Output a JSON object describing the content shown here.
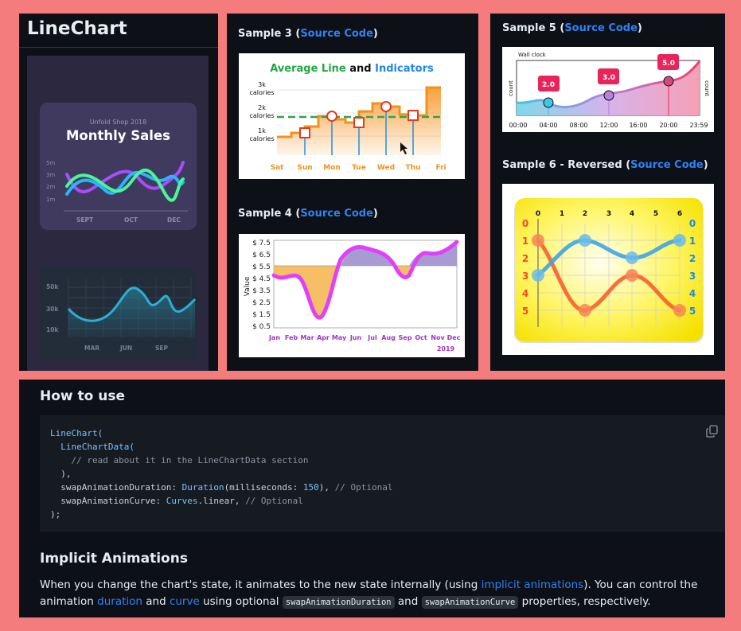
{
  "page": {
    "title": "LineChart"
  },
  "sample1": {
    "shop": "Unfold Shop 2018",
    "title": "Monthly Sales",
    "y_ticks": [
      "5m",
      "3m",
      "2m",
      "1m"
    ],
    "x_ticks": [
      "SEPT",
      "OCT",
      "DEC"
    ]
  },
  "sample2": {
    "y_ticks": [
      "50k",
      "30k",
      "10k"
    ],
    "x_ticks": [
      "MAR",
      "JUN",
      "SEP"
    ]
  },
  "sample3": {
    "heading": "Sample 3 (",
    "link": "Source Code",
    "close": ")",
    "title_a": "Average Line",
    "title_and": " and ",
    "title_b": "Indicators",
    "y_labels": [
      "3k",
      "calories",
      "2k",
      "calories",
      "1k",
      "calories"
    ],
    "x_labels": [
      "Sat",
      "Sun",
      "Mon",
      "Tue",
      "Wed",
      "Thu",
      "Fri"
    ]
  },
  "sample4": {
    "heading": "Sample 4 (",
    "link": "Source Code",
    "close": ")",
    "y_axis_label": "Value",
    "y_ticks": [
      "$ 7.5",
      "$ 6.5",
      "$ 5.5",
      "$ 4.5",
      "$ 3.5",
      "$ 2.5",
      "$ 1.5",
      "$ 0.5"
    ],
    "x_ticks": [
      "Jan",
      "Feb",
      "Mar",
      "Apr",
      "May",
      "Jun",
      "Jul",
      "Aug",
      "Sep",
      "Oct",
      "Nov",
      "Dec"
    ],
    "year": "2019"
  },
  "sample5": {
    "heading": "Sample 5 (",
    "link": "Source Code",
    "close": ")",
    "top_label": "Wall clock",
    "left_label": "count",
    "right_label": "count",
    "badges": [
      "2.0",
      "3.0",
      "5.0"
    ],
    "x_ticks": [
      "00:00",
      "04:00",
      "08:00",
      "12:00",
      "16:00",
      "20:00",
      "23:59"
    ]
  },
  "sample6": {
    "heading": "Sample 6 - Reversed (",
    "link": "Source Code",
    "close": ")",
    "top_ticks": [
      "0",
      "1",
      "2",
      "3",
      "4",
      "5",
      "6"
    ],
    "left_ticks": [
      "0",
      "1",
      "2",
      "3",
      "4",
      "5"
    ],
    "right_ticks": [
      "0",
      "1",
      "2",
      "3",
      "4",
      "5"
    ]
  },
  "how_to_use": {
    "heading": "How to use",
    "code": {
      "l1": "LineChart(",
      "l2": "LineChartData(",
      "l3": "// read about it in the LineChartData section",
      "l4": "),",
      "l5a": "swapAnimationDuration: ",
      "l5b": "Duration",
      "l5c": "(milliseconds: ",
      "l5d": "150",
      "l5e": "), ",
      "l5f": "// Optional",
      "l6a": "swapAnimationCurve: ",
      "l6b": "Curves",
      "l6c": ".linear, ",
      "l6d": "// Optional",
      "l7": ");"
    }
  },
  "implicit": {
    "heading": "Implicit Animations",
    "p1": "When you change the chart's state, it animates to the new state internally (using ",
    "link1": "implicit animations",
    "p2": "). You can control the animation ",
    "link2": "duration",
    "p3": " and ",
    "link3": "curve",
    "p4": " using optional ",
    "code1": "swapAnimationDuration",
    "p5": " and ",
    "code2": "swapAnimationCurve",
    "p6": " properties, respectively."
  },
  "colors": {
    "background": "#f47c7c",
    "panel": "#0d1117",
    "link": "#2f81f7"
  }
}
